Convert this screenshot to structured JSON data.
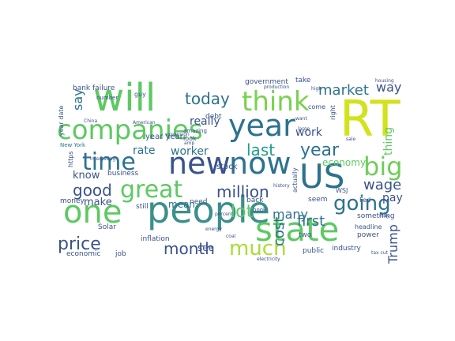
{
  "words": [
    {
      "text": "people",
      "color": "#3b8f8c"
    },
    {
      "text": "RT",
      "color": "#d2e21b"
    },
    {
      "text": "will",
      "color": "#5ec962"
    },
    {
      "text": "year",
      "color": "#2c728e"
    },
    {
      "text": "US",
      "color": "#2c728e"
    },
    {
      "text": "state",
      "color": "#5ec962"
    },
    {
      "text": "new",
      "color": "#3b528b"
    },
    {
      "text": "now",
      "color": "#2c728e"
    },
    {
      "text": "companies",
      "color": "#5ec962"
    },
    {
      "text": "think",
      "color": "#7ad151"
    },
    {
      "text": "one",
      "color": "#5ec962"
    },
    {
      "text": "great",
      "color": "#5ec962"
    },
    {
      "text": "time",
      "color": "#2c728e"
    },
    {
      "text": "big",
      "color": "#6ece58"
    },
    {
      "text": "going",
      "color": "#2c728e"
    },
    {
      "text": "much",
      "color": "#aadc32"
    },
    {
      "text": "price",
      "color": "#3b528b"
    },
    {
      "text": "month",
      "color": "#3b528b"
    },
    {
      "text": "million",
      "color": "#3b528b"
    },
    {
      "text": "market",
      "color": "#2c728e"
    },
    {
      "text": "last",
      "color": "#1f9e89"
    },
    {
      "text": "today",
      "color": "#2c728e"
    },
    {
      "text": "good",
      "color": "#3b528b"
    },
    {
      "text": "cost",
      "color": "#2c728e"
    },
    {
      "text": "year",
      "color": "#2c728e"
    },
    {
      "text": "lot",
      "color": "#5ec962"
    },
    {
      "text": "first",
      "color": "#2c728e"
    },
    {
      "text": "many",
      "color": "#2c728e"
    },
    {
      "text": "Trump",
      "color": "#3b528b"
    },
    {
      "text": "work",
      "color": "#3b528b"
    },
    {
      "text": "wage",
      "color": "#3b528b"
    },
    {
      "text": "really",
      "color": "#3b528b"
    },
    {
      "text": "say",
      "color": "#2c728e"
    },
    {
      "text": "way",
      "color": "#3b528b"
    },
    {
      "text": "rate",
      "color": "#2c728e"
    },
    {
      "text": "worker",
      "color": "#2c728e"
    },
    {
      "text": "pay",
      "color": "#3b528b"
    },
    {
      "text": "know",
      "color": "#3b528b"
    },
    {
      "text": "thing",
      "color": "#5ec962"
    },
    {
      "text": "mean",
      "color": "#2c728e"
    },
    {
      "text": "make",
      "color": "#3b528b"
    },
    {
      "text": "see",
      "color": "#3b528b"
    },
    {
      "text": "economy",
      "color": "#5ec962"
    },
    {
      "text": "bank failure",
      "color": "#3b528b"
    },
    {
      "text": "year year",
      "color": "#3b528b"
    },
    {
      "text": "debt",
      "color": "#3b528b"
    },
    {
      "text": "government",
      "color": "#3b528b"
    },
    {
      "text": "take",
      "color": "#3b528b"
    },
    {
      "text": "stock",
      "color": "#3b528b"
    },
    {
      "text": "back",
      "color": "#3b528b"
    },
    {
      "text": "business",
      "color": "#3b528b"
    },
    {
      "text": "still",
      "color": "#3b528b"
    },
    {
      "text": "something",
      "color": "#3b528b"
    },
    {
      "text": "seem",
      "color": "#3b528b"
    },
    {
      "text": "need",
      "color": "#3b528b"
    },
    {
      "text": "money",
      "color": "#3b528b"
    },
    {
      "text": "inflation",
      "color": "#3b528b"
    },
    {
      "text": "economic",
      "color": "#3b528b"
    },
    {
      "text": "job",
      "color": "#3b528b"
    },
    {
      "text": "industry",
      "color": "#3b528b"
    },
    {
      "text": "public",
      "color": "#3b528b"
    },
    {
      "text": "power",
      "color": "#3b528b"
    },
    {
      "text": "Solar",
      "color": "#3b528b"
    },
    {
      "text": "https",
      "color": "#3b528b"
    },
    {
      "text": "actually",
      "color": "#3b528b"
    },
    {
      "text": "two",
      "color": "#3b528b"
    },
    {
      "text": "right",
      "color": "#3b528b"
    },
    {
      "text": "Fed",
      "color": "#3b528b"
    },
    {
      "text": "look",
      "color": "#3b528b"
    },
    {
      "text": "guy",
      "color": "#3b528b"
    },
    {
      "text": "year date",
      "color": "#3b528b"
    },
    {
      "text": "headline",
      "color": "#3b528b"
    },
    {
      "text": "come",
      "color": "#3b528b"
    },
    {
      "text": "WSJ",
      "color": "#3b528b"
    },
    {
      "text": "book",
      "color": "#3b528b"
    },
    {
      "text": "New York",
      "color": "#2c728e"
    },
    {
      "text": "number",
      "color": "#3b528b"
    },
    {
      "text": "amazing",
      "color": "#3b528b"
    },
    {
      "text": "percent",
      "color": "#3b528b"
    },
    {
      "text": "expansion",
      "color": "#3b528b"
    },
    {
      "text": "electricity",
      "color": "#3b528b"
    },
    {
      "text": "history",
      "color": "#3b528b"
    },
    {
      "text": "interesting",
      "color": "#3b528b"
    },
    {
      "text": "American",
      "color": "#3b528b"
    },
    {
      "text": "coal",
      "color": "#3b528b"
    },
    {
      "text": "amp",
      "color": "#3b528b"
    },
    {
      "text": "may",
      "color": "#3b528b"
    },
    {
      "text": "large",
      "color": "#3b528b"
    },
    {
      "text": "sale",
      "color": "#3b528b"
    },
    {
      "text": "tax cut",
      "color": "#3b528b"
    },
    {
      "text": "high",
      "color": "#3b528b"
    },
    {
      "text": "want",
      "color": "#3b528b"
    },
    {
      "text": "China",
      "color": "#3b528b"
    },
    {
      "text": "energy",
      "color": "#3b528b"
    },
    {
      "text": "housing",
      "color": "#3b528b"
    },
    {
      "text": "production",
      "color": "#3b528b"
    }
  ]
}
